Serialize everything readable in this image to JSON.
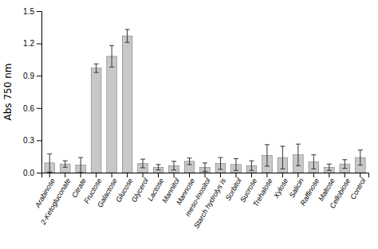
{
  "chart_data": {
    "type": "bar",
    "categories": [
      "Arabinose",
      "2-Ketogluconate",
      "Citrate",
      "Fructose",
      "Galactose",
      "Glucose",
      "Glycerol",
      "Lactose",
      "Mannitol",
      "Mannose",
      "meso-Inositol",
      "Starch hydrolys is",
      "Sorbitol",
      "Sucrose",
      "Trehalose",
      "Xylose",
      "Salicin",
      "Raffinose",
      "Maltose",
      "Cellobiose",
      "Control"
    ],
    "values": [
      0.09,
      0.08,
      0.07,
      0.97,
      1.08,
      1.27,
      0.085,
      0.05,
      0.065,
      0.105,
      0.05,
      0.085,
      0.075,
      0.065,
      0.16,
      0.14,
      0.165,
      0.1,
      0.05,
      0.08,
      0.14
    ],
    "errors": [
      0.085,
      0.03,
      0.07,
      0.04,
      0.1,
      0.06,
      0.04,
      0.025,
      0.04,
      0.03,
      0.04,
      0.055,
      0.055,
      0.045,
      0.1,
      0.105,
      0.1,
      0.065,
      0.03,
      0.04,
      0.07
    ],
    "color": "#c8c8c8",
    "y_label": "Abs 750 nm",
    "ylim": [
      0,
      1.5
    ],
    "yticks": [
      {
        "value": 0.0,
        "label": "0.0"
      },
      0.3,
      0.6,
      0.9,
      1.2,
      1.5
    ],
    "grid": false
  }
}
